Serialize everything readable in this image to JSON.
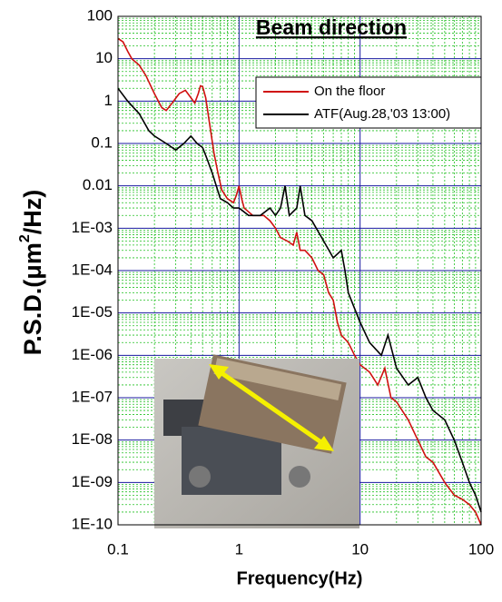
{
  "chart_data": {
    "type": "line",
    "title": "Beam direction",
    "x_label": "Frequency(Hz)",
    "y_label": [
      "P.S.D.(",
      "μm",
      "2",
      "/Hz)"
    ],
    "xscale": "log",
    "yscale": "log",
    "grid": true,
    "minor_grid": true,
    "legend": "upper right",
    "xlim": [
      0.1,
      100
    ],
    "xticks": [
      0.1,
      1,
      10,
      100
    ],
    "ylim": [
      1e-10,
      100
    ],
    "yticks": [
      {
        "value": 1e-10,
        "label": "1E-10"
      },
      {
        "value": 1e-09,
        "label": "1E-09"
      },
      {
        "value": 1e-08,
        "label": "1E-08"
      },
      {
        "value": 1e-07,
        "label": "1E-07"
      },
      {
        "value": 1e-06,
        "label": "1E-06"
      },
      {
        "value": 1e-05,
        "label": "1E-05"
      },
      {
        "value": 0.0001,
        "label": "1E-04"
      },
      {
        "value": 0.001,
        "label": "1E-03"
      },
      0.01,
      0.1,
      1,
      10,
      100
    ],
    "series": [
      {
        "name": "On the floor",
        "color": "#d01010",
        "x": [
          0.1,
          0.11,
          0.12,
          0.13,
          0.15,
          0.17,
          0.2,
          0.23,
          0.25,
          0.28,
          0.32,
          0.36,
          0.4,
          0.43,
          0.46,
          0.48,
          0.5,
          0.53,
          0.57,
          0.62,
          0.67,
          0.72,
          0.8,
          0.9,
          0.95,
          1.0,
          1.05,
          1.1,
          1.3,
          1.6,
          1.8,
          2.0,
          2.2,
          2.5,
          2.8,
          3.0,
          3.2,
          3.5,
          4.0,
          4.5,
          5.0,
          5.5,
          6,
          6.5,
          7,
          8,
          9,
          10,
          12,
          14,
          16,
          18,
          20,
          25,
          30,
          35,
          40,
          50,
          60,
          70,
          80,
          90,
          100
        ],
        "values": [
          30,
          25,
          15,
          10,
          7,
          4,
          1.5,
          0.7,
          0.6,
          0.9,
          1.5,
          1.8,
          1.2,
          0.9,
          1.5,
          2.3,
          2.2,
          1.2,
          0.3,
          0.06,
          0.02,
          0.008,
          0.005,
          0.004,
          0.006,
          0.01,
          0.005,
          0.003,
          0.002,
          0.002,
          0.0015,
          0.001,
          0.0006,
          0.0005,
          0.0004,
          0.0008,
          0.0003,
          0.0003,
          0.0002,
          0.0001,
          8e-05,
          3e-05,
          2e-05,
          6e-06,
          3e-06,
          2e-06,
          1e-06,
          6e-07,
          4e-07,
          2e-07,
          5e-07,
          1e-07,
          8e-08,
          3e-08,
          1e-08,
          4e-09,
          3e-09,
          1e-09,
          5e-10,
          4e-10,
          3e-10,
          2e-10,
          1e-10
        ]
      },
      {
        "name": "ATF(Aug.28,'03 13:00)",
        "color": "#000000",
        "x": [
          0.1,
          0.12,
          0.15,
          0.18,
          0.2,
          0.25,
          0.3,
          0.35,
          0.4,
          0.45,
          0.5,
          0.55,
          0.6,
          0.7,
          0.8,
          0.9,
          1.0,
          1.2,
          1.5,
          1.8,
          2.0,
          2.2,
          2.4,
          2.6,
          3.0,
          3.2,
          3.5,
          4.0,
          5.0,
          6,
          7,
          7.5,
          8,
          10,
          12,
          15,
          17,
          20,
          25,
          30,
          35,
          40,
          50,
          60,
          70,
          80,
          90,
          100
        ],
        "values": [
          2,
          1,
          0.5,
          0.2,
          0.15,
          0.1,
          0.07,
          0.1,
          0.15,
          0.1,
          0.08,
          0.04,
          0.02,
          0.005,
          0.004,
          0.003,
          0.003,
          0.002,
          0.002,
          0.003,
          0.002,
          0.003,
          0.01,
          0.002,
          0.003,
          0.01,
          0.002,
          0.0015,
          0.0005,
          0.0002,
          0.0003,
          0.0001,
          3e-05,
          6e-06,
          2e-06,
          1e-06,
          3e-06,
          5e-07,
          2e-07,
          3e-07,
          1e-07,
          5e-08,
          3e-08,
          1e-08,
          3e-09,
          1e-09,
          5e-10,
          2e-10
        ]
      }
    ]
  }
}
